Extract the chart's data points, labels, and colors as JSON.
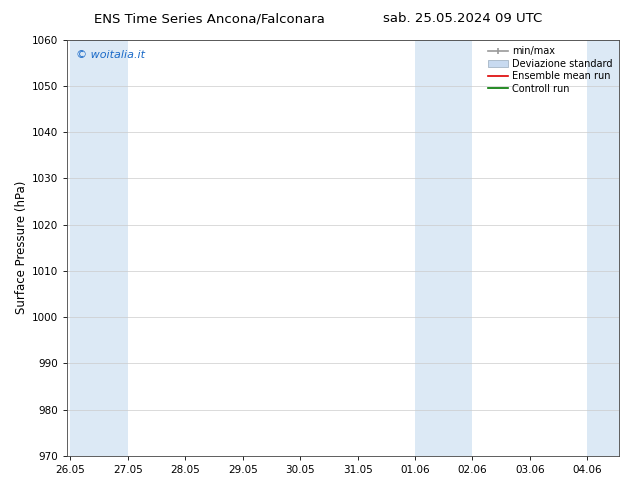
{
  "title_left": "ENS Time Series Ancona/Falconara",
  "title_right": "sab. 25.05.2024 09 UTC",
  "ylabel": "Surface Pressure (hPa)",
  "ylim": [
    970,
    1060
  ],
  "yticks": [
    970,
    980,
    990,
    1000,
    1010,
    1020,
    1030,
    1040,
    1050,
    1060
  ],
  "xtick_labels": [
    "26.05",
    "27.05",
    "28.05",
    "29.05",
    "30.05",
    "31.05",
    "01.06",
    "02.06",
    "03.06",
    "04.06"
  ],
  "xtick_positions": [
    0,
    1,
    2,
    3,
    4,
    5,
    6,
    7,
    8,
    9
  ],
  "xlim": [
    -0.05,
    9.55
  ],
  "shaded_bands": [
    {
      "x_start": 0,
      "x_end": 1,
      "color": "#dce9f5"
    },
    {
      "x_start": 6,
      "x_end": 7,
      "color": "#dce9f5"
    },
    {
      "x_start": 9,
      "x_end": 9.55,
      "color": "#dce9f5"
    }
  ],
  "watermark_text": "© woitalia.it",
  "watermark_color": "#1a6ac8",
  "legend_labels": [
    "min/max",
    "Deviazione standard",
    "Ensemble mean run",
    "Controll run"
  ],
  "legend_colors_line": [
    "#999999",
    "#b8cfe8",
    "#dd0000",
    "#007700"
  ],
  "legend_bg_color": "#c8daf0",
  "background_color": "#ffffff",
  "plot_bg_color": "#ffffff",
  "grid_color": "#cccccc",
  "title_fontsize": 9.5,
  "tick_fontsize": 7.5,
  "ylabel_fontsize": 8.5
}
